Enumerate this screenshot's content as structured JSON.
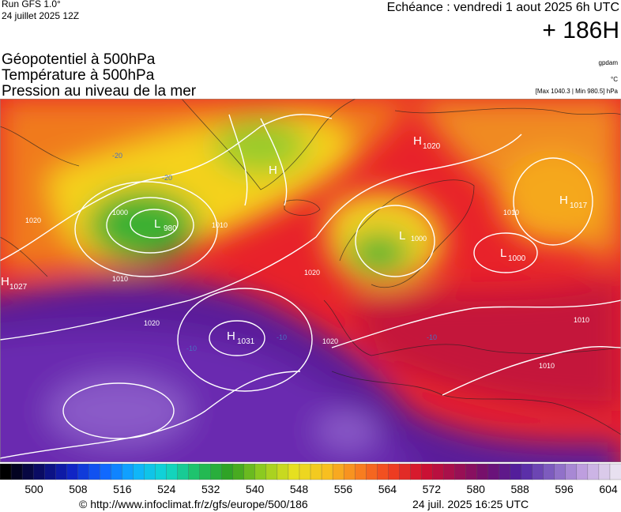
{
  "header": {
    "run": "Run GFS 1.0°",
    "run_date": "24 juillet 2025 12Z",
    "forecast": "Echéance : vendredi 1 aout 2025 6h UTC",
    "lead": "+ 186H",
    "titles": [
      "Géopotentiel à 500hPa",
      "Température à 500hPa",
      "Pression au niveau de la mer"
    ],
    "unit_geo": "gpdam",
    "unit_temp": "°C",
    "pressure_range": "[Max 1040.3 | Min 980.5] hPa"
  },
  "map": {
    "centers": [
      {
        "kind": "H",
        "value": "1020"
      },
      {
        "kind": "H",
        "value": "1017"
      },
      {
        "kind": "L",
        "value": "980"
      },
      {
        "kind": "L",
        "value": "1000"
      },
      {
        "kind": "H",
        "value": "1027"
      },
      {
        "kind": "H",
        "value": "1031"
      },
      {
        "kind": "L"
      },
      {
        "kind": "H"
      }
    ],
    "isobar_labels": [
      "1020",
      "1010",
      "1000",
      "1020",
      "1020",
      "1020",
      "1010",
      "1010",
      "1010",
      "1010",
      "1000"
    ],
    "temperature_labels": [
      "-10",
      "-10",
      "-20",
      "-20",
      "-10"
    ]
  },
  "colorbar": {
    "labels": [
      500,
      508,
      516,
      524,
      532,
      540,
      548,
      556,
      564,
      572,
      580,
      588,
      596,
      604
    ]
  },
  "footer": {
    "source": "© http://www.infoclimat.fr/z/gfs/europe/500/186",
    "generated": "24 juil. 2025 16:25 UTC"
  }
}
